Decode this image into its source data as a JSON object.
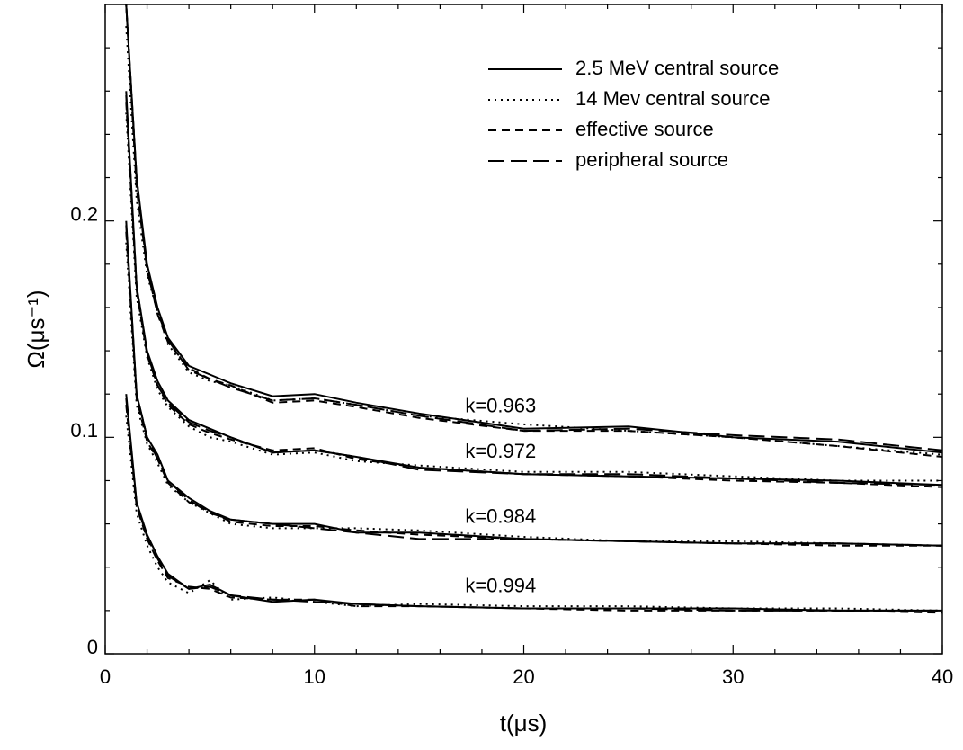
{
  "chart_data": {
    "type": "line",
    "xlabel": "t(μs)",
    "ylabel": "Ω(μs⁻¹)",
    "xlim": [
      0,
      40
    ],
    "xticks": [
      0,
      10,
      20,
      30,
      40
    ],
    "xminorticks": [
      2,
      4,
      6,
      8,
      12,
      14,
      16,
      18,
      22,
      24,
      26,
      28,
      32,
      34,
      36,
      38
    ],
    "ylim": [
      0,
      0.3
    ],
    "yticks": [
      0,
      0.1,
      0.2
    ],
    "yminorticks": [
      0.02,
      0.04,
      0.06,
      0.08,
      0.12,
      0.14,
      0.16,
      0.18,
      0.22,
      0.24,
      0.26,
      0.28
    ],
    "legend": "upper right",
    "labels": [
      "k=0.963",
      "k=0.972",
      "k=0.984",
      "k=0.994"
    ],
    "x": [
      1,
      1.5,
      2,
      2.5,
      3,
      4,
      5,
      6,
      8,
      10,
      12,
      15,
      20,
      25,
      30,
      35,
      40
    ],
    "series": [
      {
        "name": "2.5 MeV central source",
        "color": "#000000",
        "style": "solid",
        "curves": [
          [
            0.3,
            0.22,
            0.18,
            0.16,
            0.146,
            0.133,
            0.129,
            0.125,
            0.119,
            0.12,
            0.116,
            0.111,
            0.104,
            0.105,
            0.1,
            0.098,
            0.093
          ],
          [
            0.26,
            0.17,
            0.14,
            0.126,
            0.117,
            0.108,
            0.104,
            0.1,
            0.093,
            0.094,
            0.091,
            0.086,
            0.083,
            0.082,
            0.081,
            0.08,
            0.078
          ],
          [
            0.2,
            0.12,
            0.1,
            0.092,
            0.08,
            0.072,
            0.066,
            0.062,
            0.06,
            0.06,
            0.056,
            0.056,
            0.053,
            0.052,
            0.051,
            0.051,
            0.05
          ],
          [
            0.12,
            0.07,
            0.055,
            0.045,
            0.037,
            0.03,
            0.032,
            0.027,
            0.024,
            0.025,
            0.023,
            0.022,
            0.021,
            0.021,
            0.021,
            0.02,
            0.02
          ]
        ]
      },
      {
        "name": "14 Mev central source",
        "color": "#000000",
        "style": "dotted",
        "curves": [
          [
            0.29,
            0.21,
            0.175,
            0.158,
            0.143,
            0.13,
            0.126,
            0.124,
            0.117,
            0.118,
            0.115,
            0.11,
            0.106,
            0.103,
            0.1,
            0.096,
            0.092
          ],
          [
            0.25,
            0.165,
            0.137,
            0.122,
            0.114,
            0.105,
            0.1,
            0.098,
            0.092,
            0.093,
            0.089,
            0.087,
            0.084,
            0.084,
            0.082,
            0.08,
            0.08
          ],
          [
            0.19,
            0.115,
            0.097,
            0.088,
            0.078,
            0.07,
            0.065,
            0.06,
            0.058,
            0.058,
            0.058,
            0.057,
            0.054,
            0.052,
            0.052,
            0.051,
            0.05
          ],
          [
            0.11,
            0.065,
            0.05,
            0.04,
            0.033,
            0.028,
            0.034,
            0.025,
            0.026,
            0.024,
            0.022,
            0.023,
            0.022,
            0.022,
            0.021,
            0.021,
            0.02
          ]
        ]
      },
      {
        "name": "effective source",
        "color": "#000000",
        "style": "dashed",
        "curves": [
          [
            0.3,
            0.215,
            0.178,
            0.157,
            0.144,
            0.132,
            0.127,
            0.124,
            0.116,
            0.117,
            0.114,
            0.109,
            0.103,
            0.103,
            0.1,
            0.096,
            0.091
          ],
          [
            0.255,
            0.168,
            0.138,
            0.124,
            0.115,
            0.106,
            0.102,
            0.099,
            0.094,
            0.095,
            0.09,
            0.086,
            0.083,
            0.082,
            0.08,
            0.079,
            0.077
          ],
          [
            0.195,
            0.118,
            0.098,
            0.09,
            0.079,
            0.07,
            0.066,
            0.061,
            0.059,
            0.059,
            0.057,
            0.055,
            0.053,
            0.052,
            0.051,
            0.05,
            0.05
          ],
          [
            0.115,
            0.068,
            0.053,
            0.043,
            0.035,
            0.031,
            0.03,
            0.026,
            0.025,
            0.025,
            0.022,
            0.022,
            0.021,
            0.02,
            0.02,
            0.02,
            0.019
          ]
        ]
      },
      {
        "name": "peripheral source",
        "color": "#000000",
        "style": "longdash",
        "curves": [
          [
            0.3,
            0.22,
            0.177,
            0.158,
            0.145,
            0.131,
            0.127,
            0.123,
            0.117,
            0.118,
            0.115,
            0.11,
            0.103,
            0.104,
            0.101,
            0.099,
            0.094
          ],
          [
            0.258,
            0.17,
            0.139,
            0.124,
            0.116,
            0.107,
            0.103,
            0.1,
            0.093,
            0.094,
            0.091,
            0.085,
            0.083,
            0.083,
            0.081,
            0.079,
            0.078
          ],
          [
            0.198,
            0.12,
            0.1,
            0.09,
            0.08,
            0.071,
            0.065,
            0.062,
            0.06,
            0.058,
            0.056,
            0.053,
            0.053,
            0.052,
            0.051,
            0.051,
            0.05
          ],
          [
            0.118,
            0.069,
            0.054,
            0.044,
            0.036,
            0.03,
            0.031,
            0.027,
            0.025,
            0.024,
            0.023,
            0.022,
            0.021,
            0.021,
            0.02,
            0.02,
            0.02
          ]
        ]
      }
    ]
  }
}
